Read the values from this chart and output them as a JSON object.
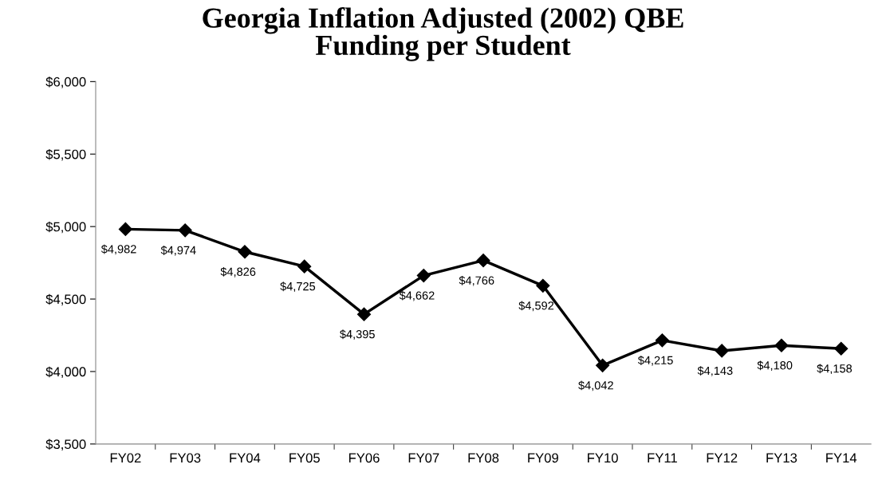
{
  "chart_data": {
    "type": "line",
    "title": "Georgia Inflation Adjusted (2002) QBE\nFunding per Student",
    "categories": [
      "FY02",
      "FY03",
      "FY04",
      "FY05",
      "FY06",
      "FY07",
      "FY08",
      "FY09",
      "FY10",
      "FY11",
      "FY12",
      "FY13",
      "FY14"
    ],
    "series": [
      {
        "color": "#000000",
        "values": [
          4982,
          4974,
          4826,
          4725,
          4395,
          4662,
          4766,
          4592,
          4042,
          4215,
          4143,
          4180,
          4158
        ],
        "value_labels": [
          "$4,982",
          "$4,974",
          "$4,826",
          "$4,725",
          "$4,395",
          "$4,662",
          "$4,766",
          "$4,592",
          "$4,042",
          "$4,215",
          "$4,143",
          "$4,180",
          "$4,158"
        ]
      }
    ],
    "ylim": [
      3500,
      6000
    ],
    "yticks": [
      {
        "value": 3500,
        "label": "$3,500"
      },
      {
        "value": 4000,
        "label": "$4,000"
      },
      {
        "value": 4500,
        "label": "$4,500"
      },
      {
        "value": 5000,
        "label": "$5,000"
      },
      {
        "value": 5500,
        "label": "$5,500"
      },
      {
        "value": 6000,
        "label": "$6,000"
      }
    ],
    "marker": "diamond",
    "line_style": "solid",
    "grid": false
  }
}
